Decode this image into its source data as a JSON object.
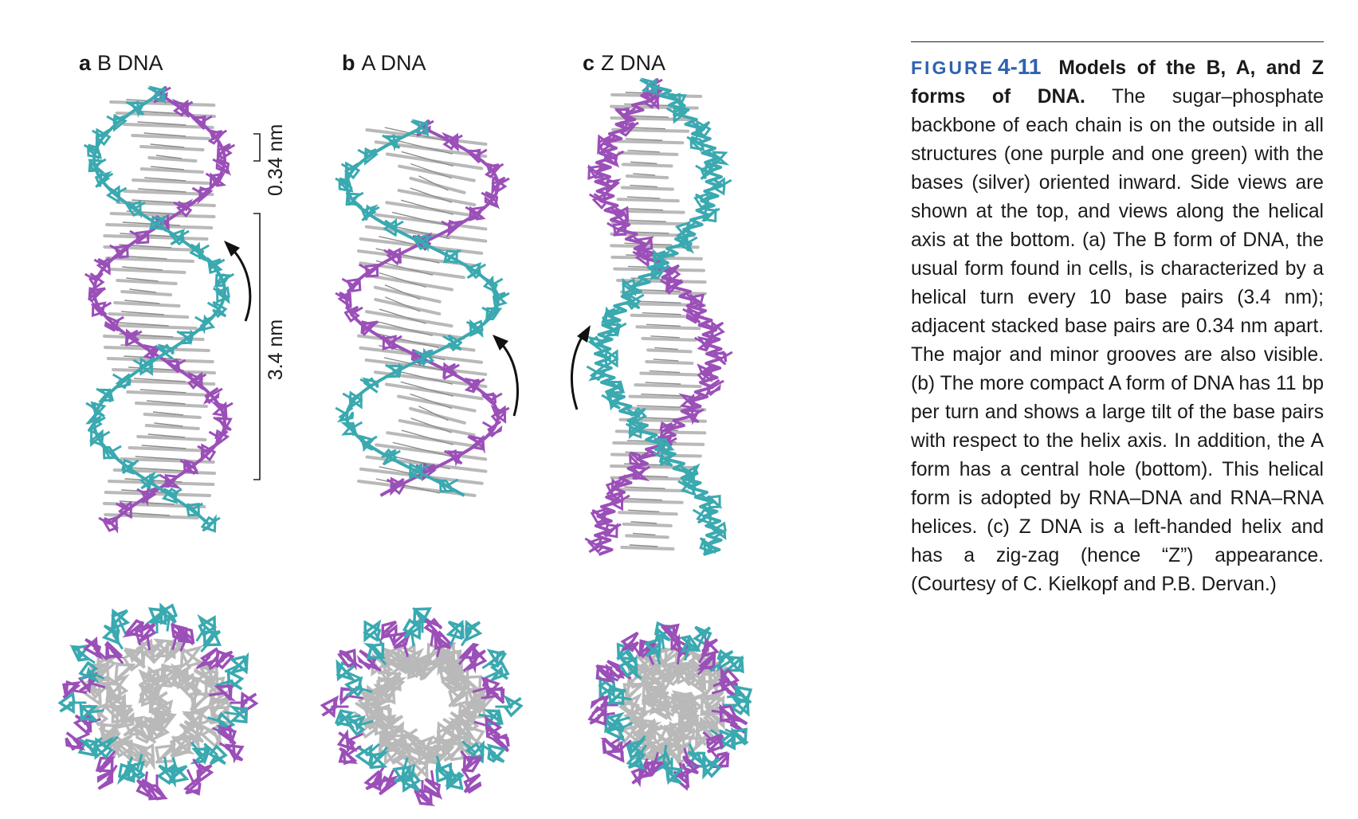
{
  "panels": {
    "a": {
      "letter": "a",
      "title": "B DNA"
    },
    "b": {
      "letter": "b",
      "title": "A DNA"
    },
    "c": {
      "letter": "c",
      "title": "Z DNA"
    }
  },
  "scale": {
    "rise": "0.34 nm",
    "turn": "3.4 nm"
  },
  "caption": {
    "figure_word": "FIGURE",
    "figure_number": "4-11",
    "title": "Models of the B, A, and Z forms of DNA.",
    "body": "The sugar–phosphate backbone of each chain is on the outside in all structures (one purple and one green) with the bases (silver) oriented inward. Side views are shown at the top, and views along the helical axis at the bottom. (a) The B form of DNA, the usual form found in cells, is characterized by a helical turn every 10 base pairs (3.4 nm); adjacent stacked base pairs are 0.34 nm apart. The major and minor grooves are also visible. (b) The more compact A form of DNA has 11 bp per turn and shows a large tilt of the base pairs with respect to the helix axis. In addition, the A form has a central hole (bottom). This helical form is adopted by RNA–DNA and RNA–RNA helices. (c) Z DNA is a left-handed helix and has a zig-zag (hence “Z”) appearance. (Courtesy of C. Kielkopf and P.B. Dervan.)"
  },
  "colors": {
    "purple_strand": "#9b4fb8",
    "teal_strand": "#3aa9b0",
    "bases": "#b9b9b9",
    "figure_blue": "#2f62b0"
  }
}
